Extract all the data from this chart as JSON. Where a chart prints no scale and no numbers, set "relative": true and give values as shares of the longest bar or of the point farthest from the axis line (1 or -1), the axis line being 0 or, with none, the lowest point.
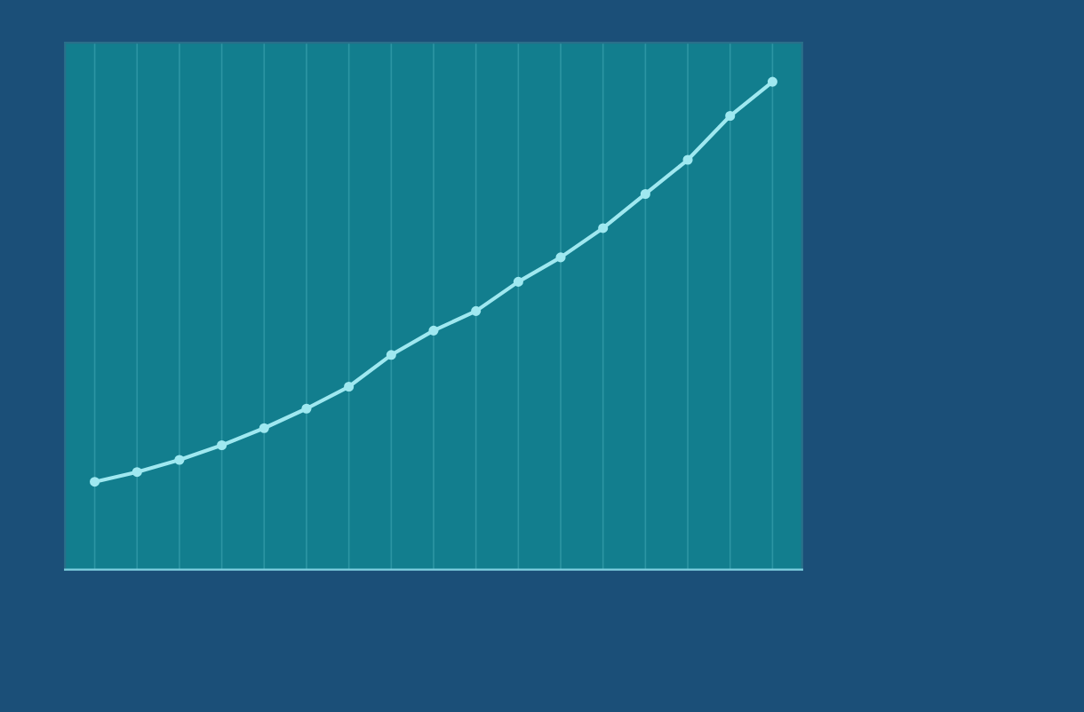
{
  "chart_data": {
    "type": "line",
    "relative": true,
    "categories": [
      null,
      null,
      null,
      null,
      null,
      null,
      null,
      null,
      null,
      null,
      null,
      null,
      null,
      null,
      null,
      null,
      null
    ],
    "series": [
      {
        "color": "#9fe8f0",
        "values": [
          0.18,
          0.2,
          0.225,
          0.255,
          0.29,
          0.33,
          0.375,
          0.44,
          0.49,
          0.53,
          0.59,
          0.64,
          0.7,
          0.77,
          0.84,
          0.93,
          1.0
        ]
      }
    ],
    "grid": "x",
    "marker": "circle"
  }
}
